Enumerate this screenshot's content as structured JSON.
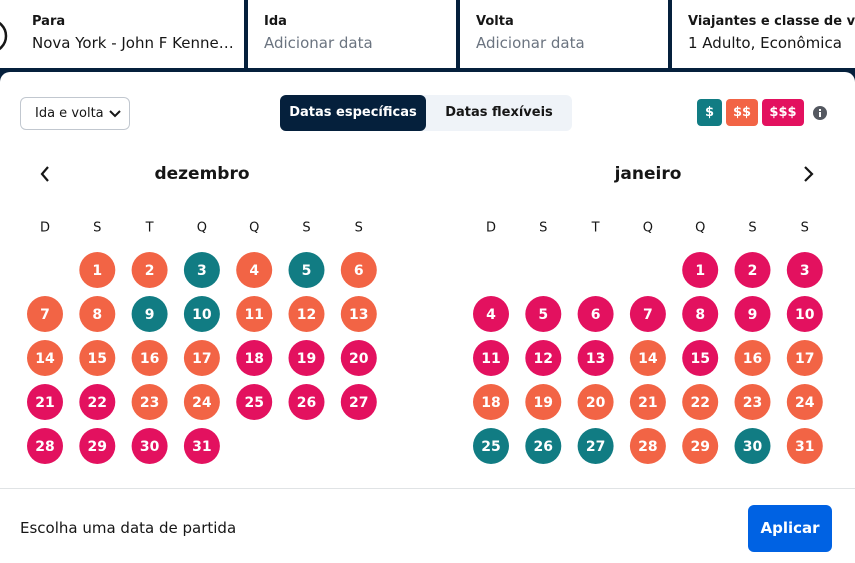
{
  "header": {
    "fields": [
      {
        "label": "Para",
        "value": "Nova York - John F Kenne…"
      },
      {
        "label": "Ida",
        "value": "Adicionar data"
      },
      {
        "label": "Volta",
        "value": "Adicionar data"
      },
      {
        "label": "Viajantes e classe de voo",
        "value": "1 Adulto, Econômica"
      }
    ]
  },
  "trip_type": "Ida e volta",
  "date_modes": [
    "Datas específicas",
    "Datas flexíveis"
  ],
  "price_levels": [
    {
      "label": "$",
      "color": "#117c83"
    },
    {
      "label": "$$",
      "color": "#f26445"
    },
    {
      "label": "$$$",
      "color": "#e3115f"
    }
  ],
  "months": [
    {
      "name": "dezembro",
      "weekdays": [
        "D",
        "S",
        "T",
        "Q",
        "Q",
        "S",
        "S"
      ],
      "days": [
        null,
        1,
        2,
        3,
        4,
        5,
        6,
        7,
        8,
        9,
        10,
        11,
        12,
        13,
        14,
        15,
        16,
        17,
        18,
        19,
        20,
        21,
        22,
        23,
        24,
        25,
        26,
        27,
        28,
        29,
        30,
        31
      ],
      "day_colors": [
        null,
        "#f26445",
        "#f26445",
        "#117c83",
        "#f26445",
        "#117c83",
        "#f26445",
        "#f26445",
        "#f26445",
        "#117c83",
        "#117c83",
        "#f26445",
        "#f26445",
        "#f26445",
        "#f26445",
        "#f26445",
        "#f26445",
        "#f26445",
        "#e3115f",
        "#e3115f",
        "#e3115f",
        "#e3115f",
        "#e3115f",
        "#f26445",
        "#f26445",
        "#e3115f",
        "#e3115f",
        "#e3115f",
        "#e3115f",
        "#e3115f",
        "#e3115f",
        "#e3115f"
      ]
    },
    {
      "name": "janeiro",
      "weekdays": [
        "D",
        "S",
        "T",
        "Q",
        "Q",
        "S",
        "S"
      ],
      "days": [
        null,
        null,
        null,
        null,
        1,
        2,
        3,
        4,
        5,
        6,
        7,
        8,
        9,
        10,
        11,
        12,
        13,
        14,
        15,
        16,
        17,
        18,
        19,
        20,
        21,
        22,
        23,
        24,
        25,
        26,
        27,
        28,
        29,
        30,
        31
      ],
      "day_colors": [
        null,
        null,
        null,
        null,
        "#e3115f",
        "#e3115f",
        "#e3115f",
        "#e3115f",
        "#e3115f",
        "#e3115f",
        "#e3115f",
        "#e3115f",
        "#e3115f",
        "#e3115f",
        "#e3115f",
        "#e3115f",
        "#e3115f",
        "#f26445",
        "#e3115f",
        "#f26445",
        "#f26445",
        "#f26445",
        "#f26445",
        "#f26445",
        "#f26445",
        "#f26445",
        "#f26445",
        "#f26445",
        "#117c83",
        "#117c83",
        "#117c83",
        "#f26445",
        "#f26445",
        "#117c83",
        "#f26445"
      ]
    }
  ],
  "footer": {
    "hint": "Escolha uma data de partida",
    "button": "Aplicar"
  }
}
